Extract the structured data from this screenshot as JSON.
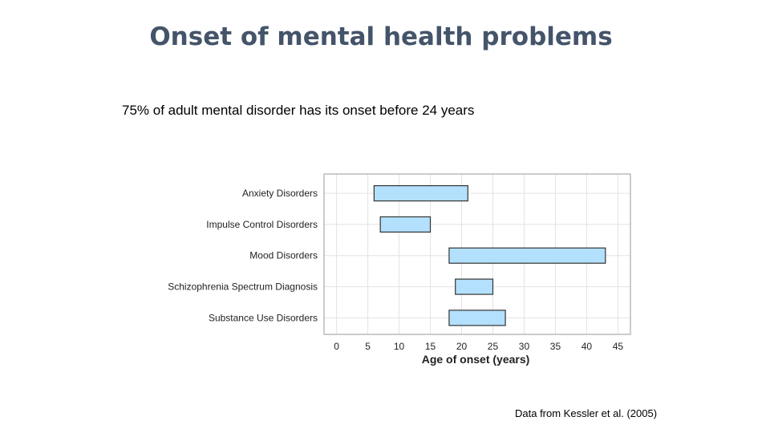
{
  "slide": {
    "title": "Onset of mental health problems",
    "subtitle": "75% of adult mental disorder has its onset before 24 years",
    "source": "Data from Kessler et al. (2005)"
  },
  "chart_data": {
    "type": "bar",
    "orientation": "horizontal",
    "xlabel": "Age of onset (years)",
    "xlim": [
      -2,
      47
    ],
    "xticks": [
      0,
      5,
      10,
      15,
      20,
      25,
      30,
      35,
      40,
      45
    ],
    "grid": true,
    "categories": [
      "Anxiety Disorders",
      "Impulse Control Disorders",
      "Mood Disorders",
      "Schizophrenia Spectrum Diagnosis",
      "Substance Use Disorders"
    ],
    "ranges": [
      {
        "category": "Anxiety Disorders",
        "start": 6,
        "end": 21
      },
      {
        "category": "Impulse Control Disorders",
        "start": 7,
        "end": 15
      },
      {
        "category": "Mood Disorders",
        "start": 18,
        "end": 43
      },
      {
        "category": "Schizophrenia Spectrum Diagnosis",
        "start": 19,
        "end": 25
      },
      {
        "category": "Substance Use Disorders",
        "start": 18,
        "end": 27
      }
    ],
    "colors": {
      "bar_fill": "#b3e0fc",
      "bar_stroke": "#333333",
      "grid": "#e3e3e3",
      "panel_border": "#9a9a9a"
    }
  }
}
